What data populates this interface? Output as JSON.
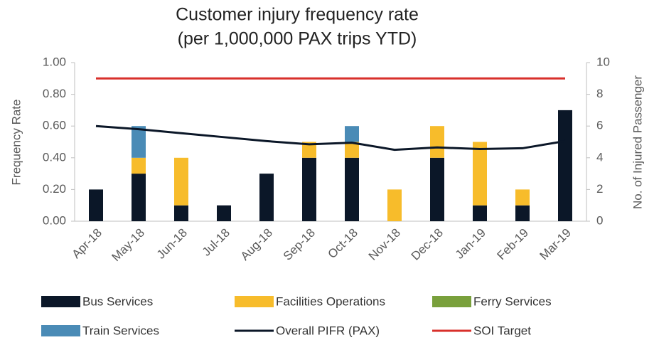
{
  "chart_data": {
    "type": "bar",
    "title": "Customer injury frequency rate",
    "subtitle": "(per 1,000,000 PAX trips YTD)",
    "ylabel": "Frequency Rate",
    "y2label": "No. of Injured Passenger",
    "categories": [
      "Apr-18",
      "May-18",
      "Jun-18",
      "Jul-18",
      "Aug-18",
      "Sep-18",
      "Oct-18",
      "Nov-18",
      "Dec-18",
      "Jan-19",
      "Feb-19",
      "Mar-19"
    ],
    "ylim": [
      0,
      1
    ],
    "yticks": [
      {
        "value": 0,
        "label": "0.00"
      },
      {
        "value": 0.2,
        "label": "0.20"
      },
      {
        "value": 0.4,
        "label": "0.40"
      },
      {
        "value": 0.6,
        "label": "0.60"
      },
      {
        "value": 0.8,
        "label": "0.80"
      },
      {
        "value": 1,
        "label": "1.00"
      }
    ],
    "y2lim": [
      0,
      10
    ],
    "y2ticks": [
      0,
      2,
      4,
      6,
      8,
      10
    ],
    "grid": false,
    "series": [
      {
        "name": "Bus Services",
        "type": "bar",
        "axis": "y2",
        "color": "#0b1728",
        "values": [
          2,
          3,
          1,
          1,
          3,
          4,
          4,
          0,
          4,
          1,
          1,
          7
        ]
      },
      {
        "name": "Facilities Operations",
        "type": "bar",
        "axis": "y2",
        "color": "#f7bc2b",
        "values": [
          0,
          1,
          3,
          0,
          0,
          1,
          1,
          2,
          2,
          4,
          1,
          0
        ]
      },
      {
        "name": "Ferry Services",
        "type": "bar",
        "axis": "y2",
        "color": "#79a03c",
        "values": [
          0,
          0,
          0,
          0,
          0,
          0,
          0,
          0,
          0,
          0,
          0,
          0
        ]
      },
      {
        "name": "Train Services",
        "type": "bar",
        "axis": "y2",
        "color": "#4a8bb6",
        "values": [
          0,
          2,
          0,
          0,
          0,
          0,
          1,
          0,
          0,
          0,
          0,
          0
        ]
      },
      {
        "name": "Overall PIFR (PAX)",
        "type": "line",
        "color": "#0b1728",
        "values": [
          0.6,
          0.58,
          0.555,
          0.53,
          0.505,
          0.485,
          0.495,
          0.45,
          0.465,
          0.455,
          0.46,
          0.505
        ]
      },
      {
        "name": "SOI Target",
        "type": "line",
        "color": "#d8302b",
        "values": [
          0.9,
          0.9,
          0.9,
          0.9,
          0.9,
          0.9,
          0.9,
          0.9,
          0.9,
          0.9,
          0.9,
          0.9
        ]
      }
    ]
  }
}
